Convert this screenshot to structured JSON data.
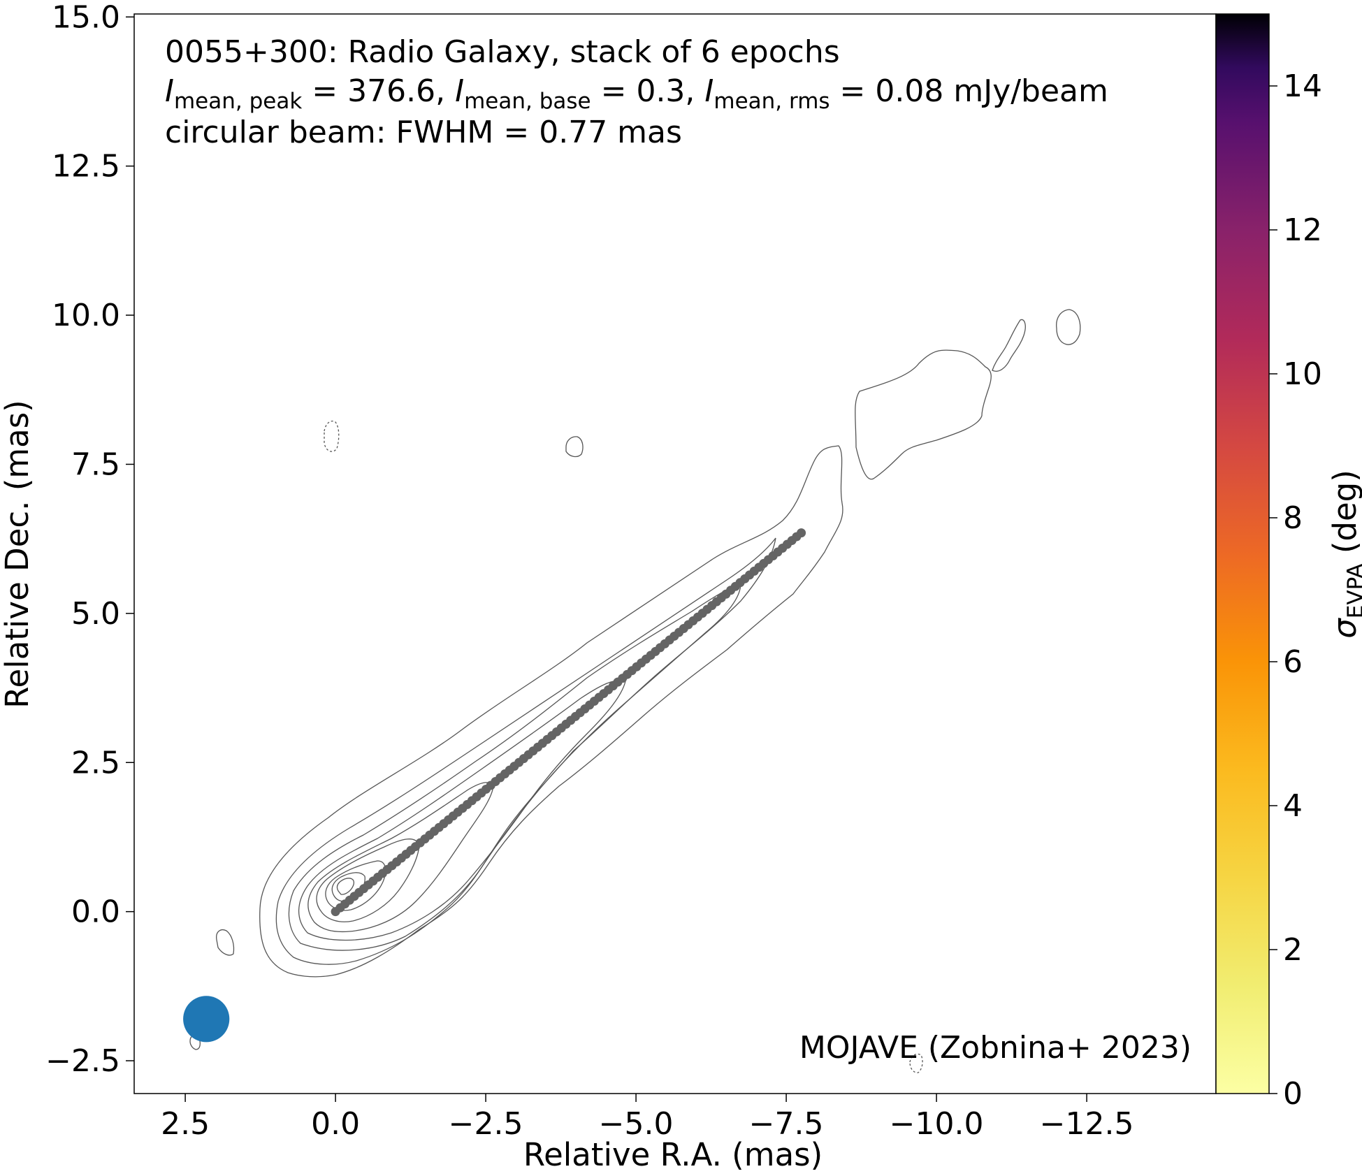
{
  "chart_data": {
    "type": "scatter",
    "title_lines": {
      "line1": "0055+300: Radio Galaxy, stack of 6 epochs",
      "line2_parts": {
        "i1": "I",
        "s1": "mean, peak",
        "t1": " = 376.6, ",
        "i2": "I",
        "s2": "mean, base",
        "t2": " = 0.3, ",
        "i3": "I",
        "s3": "mean, rms",
        "t3": " = 0.08 mJy/beam"
      },
      "line3": "circular beam: FWHM = 0.77 mas"
    },
    "credit": "MOJAVE (Zobnina+ 2023)",
    "xlabel": "Relative R.A. (mas)",
    "ylabel": "Relative Dec. (mas)",
    "xlim": [
      3.35,
      -14.65
    ],
    "ylim": [
      -3.05,
      15.05
    ],
    "xticks": [
      2.5,
      0.0,
      -2.5,
      -5.0,
      -7.5,
      -10.0,
      -12.5
    ],
    "xtick_labels": [
      "2.5",
      "0.0",
      "−2.5",
      "−5.0",
      "−7.5",
      "−10.0",
      "−12.5"
    ],
    "yticks": [
      -2.5,
      0.0,
      2.5,
      5.0,
      7.5,
      10.0,
      12.5,
      15.0
    ],
    "ytick_labels": [
      "−2.5",
      "0.0",
      "2.5",
      "5.0",
      "7.5",
      "10.0",
      "12.5",
      "15.0"
    ],
    "grid": false,
    "ridge_line": {
      "color": "#646464",
      "start": [
        0.0,
        0.0
      ],
      "end": [
        -7.75,
        6.35
      ],
      "n_points": 100
    },
    "beam": {
      "x": 2.15,
      "y": -1.8,
      "fwhm_mas": 0.77,
      "color": "#1f77b4"
    },
    "contour_color": "#555555",
    "colorbar": {
      "label_main": "σ",
      "label_sub": "EVPA",
      "label_unit": " (deg)",
      "range": [
        0,
        15
      ],
      "ticks": [
        0,
        2,
        4,
        6,
        8,
        10,
        12,
        14
      ],
      "tick_labels": [
        "0",
        "2",
        "4",
        "6",
        "8",
        "10",
        "12",
        "14"
      ],
      "colormap": "inferno_r"
    }
  }
}
